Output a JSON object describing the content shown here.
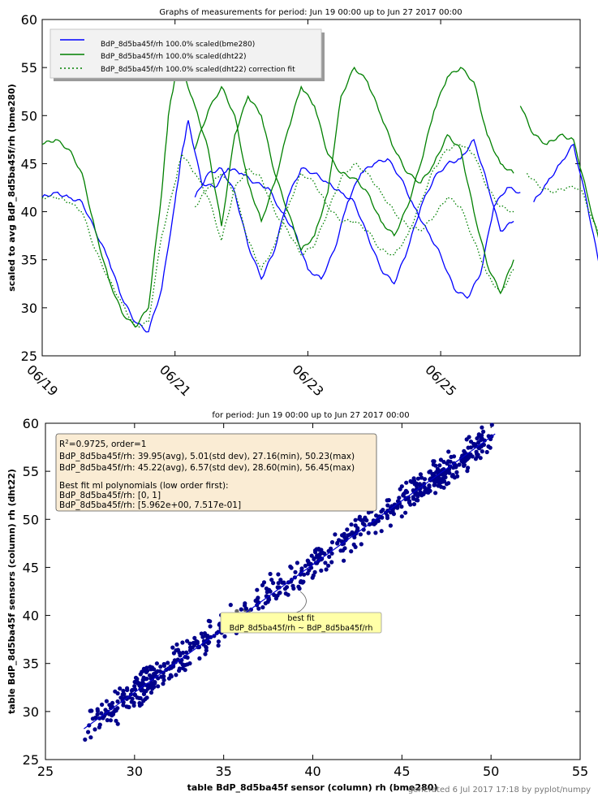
{
  "chart_data": [
    {
      "type": "line",
      "title": "Graphs of measurements for period: Jun 19 00:00 up to Jun 27 2017 00:00",
      "xlabel": "",
      "ylabel": "scaled to avg BdP_8d5ba45f/rh (bme280)",
      "xlim": [
        "2017-06-19 00:00",
        "2017-06-27 00:00"
      ],
      "ylim": [
        25,
        60
      ],
      "yticks": [
        25,
        30,
        35,
        40,
        45,
        50,
        55,
        60
      ],
      "xtick_labels": [
        "06/19",
        "06/21",
        "06/23",
        "06/25"
      ],
      "legend_position": "top-left",
      "series": [
        {
          "name": "BdP_8d5ba45f/rh  100.0% scaled(bme280)",
          "color": "#0000ff",
          "style": "solid",
          "segments": [
            {
              "x": [
                0,
                0.2,
                0.4,
                0.6,
                0.8,
                1.0,
                1.2,
                1.4,
                1.6,
                1.8,
                2.0,
                2.1,
                2.2,
                2.4,
                2.6,
                2.8,
                3.0,
                3.2,
                3.4,
                3.6,
                3.8,
                4.0,
                4.2,
                4.4,
                4.6,
                4.8,
                5.0,
                5.2,
                5.4,
                5.6,
                5.8,
                6.0,
                6.2,
                6.4,
                6.6,
                6.8,
                7.0,
                7.2
              ],
              "y": [
                41.5,
                42.0,
                41.5,
                41.0,
                38.0,
                35.0,
                31.0,
                28.5,
                27.5,
                32.0,
                41.0,
                46.0,
                49.5,
                43.0,
                42.5,
                44.5,
                44.0,
                43.0,
                42.5,
                40.0,
                38.0,
                34.0,
                33.0,
                36.0,
                41.0,
                44.0,
                45.0,
                45.5,
                43.5,
                40.5,
                38.0,
                35.5,
                32.0,
                31.0,
                33.5,
                40.5,
                42.5,
                42.0
              ]
            },
            {
              "x": [
                2.3,
                2.5,
                2.7,
                2.9,
                3.1,
                3.3,
                3.5,
                3.7,
                3.9,
                4.1,
                4.3,
                4.5,
                4.7,
                4.9,
                5.1,
                5.3,
                5.5,
                5.7,
                5.9,
                6.1,
                6.3,
                6.5,
                6.7,
                6.9,
                7.1
              ],
              "y": [
                41.5,
                44.0,
                44.5,
                42.0,
                36.5,
                33.0,
                36.0,
                41.5,
                44.5,
                44.0,
                43.0,
                42.0,
                41.0,
                37.5,
                34.0,
                32.5,
                36.0,
                40.5,
                43.5,
                45.0,
                45.5,
                47.5,
                43.0,
                38.0,
                39.0
              ]
            },
            {
              "x": [
                7.4,
                7.6,
                7.8,
                8.0,
                8.2,
                8.4,
                8.6,
                8.8,
                9.0
              ],
              "y": [
                41.0,
                43.0,
                45.0,
                47.0,
                41.0,
                34.0,
                31.0,
                30.5,
                34.5
              ]
            }
          ]
        },
        {
          "name": "BdP_8d5ba45f/rh  100.0% scaled(dht22)",
          "color": "#008000",
          "style": "solid",
          "segments": [
            {
              "x": [
                0,
                0.2,
                0.4,
                0.6,
                0.8,
                1.0,
                1.2,
                1.4,
                1.6,
                1.8,
                1.9,
                2.0,
                2.1,
                2.3,
                2.5,
                2.7,
                2.9,
                3.1,
                3.3,
                3.5,
                3.7,
                3.9,
                4.1,
                4.3,
                4.5,
                4.7,
                4.9,
                5.1,
                5.3,
                5.5,
                5.7,
                5.9,
                6.1,
                6.3,
                6.5,
                6.7,
                6.9,
                7.1
              ],
              "y": [
                47.0,
                47.5,
                46.5,
                44.0,
                38.0,
                33.0,
                29.5,
                28.0,
                30.0,
                42.0,
                50.0,
                54.0,
                55.0,
                51.0,
                46.5,
                38.5,
                48.0,
                52.0,
                50.0,
                44.0,
                40.0,
                36.0,
                37.5,
                42.0,
                52.0,
                55.0,
                53.5,
                50.0,
                46.5,
                44.0,
                43.0,
                45.0,
                48.0,
                46.5,
                40.0,
                34.5,
                31.5,
                35.0
              ]
            },
            {
              "x": [
                2.3,
                2.5,
                2.7,
                2.9,
                3.1,
                3.3,
                3.5,
                3.7,
                3.9,
                4.1,
                4.3,
                4.5,
                4.7,
                4.9,
                5.1,
                5.3,
                5.5,
                5.7,
                5.9,
                6.1,
                6.3,
                6.5,
                6.7,
                6.9,
                7.1
              ],
              "y": [
                46.5,
                50.5,
                53.0,
                50.0,
                43.0,
                39.0,
                43.0,
                48.5,
                53.0,
                51.0,
                46.0,
                44.0,
                43.5,
                42.0,
                39.0,
                37.5,
                40.5,
                45.0,
                50.5,
                54.0,
                55.0,
                53.5,
                48.0,
                45.0,
                44.0
              ]
            },
            {
              "x": [
                7.2,
                7.4,
                7.6,
                7.8,
                8.0,
                8.2,
                8.4,
                8.6,
                8.8,
                9.0
              ],
              "y": [
                51.0,
                48.0,
                47.0,
                48.0,
                47.5,
                42.0,
                36.5,
                33.0,
                33.5,
                39.0
              ]
            }
          ]
        },
        {
          "name": "BdP_8d5ba45f/rh  100.0% scaled(dht22) correction fit",
          "color": "#008000",
          "style": "dotted",
          "segments": [
            {
              "x": [
                0,
                0.2,
                0.4,
                0.6,
                0.8,
                1.0,
                1.2,
                1.4,
                1.6,
                1.8,
                2.0,
                2.1,
                2.3,
                2.5,
                2.7,
                2.9,
                3.1,
                3.3,
                3.5,
                3.7,
                3.9,
                4.1,
                4.3,
                4.5,
                4.7,
                4.9,
                5.1,
                5.3,
                5.5,
                5.7,
                5.9,
                6.1,
                6.3,
                6.5,
                6.7,
                6.9,
                7.1
              ],
              "y": [
                41.5,
                41.5,
                41.0,
                40.0,
                36.0,
                33.0,
                30.5,
                28.0,
                28.5,
                37.5,
                43.0,
                46.0,
                44.0,
                41.5,
                37.0,
                42.5,
                44.5,
                43.5,
                40.0,
                38.0,
                35.5,
                36.5,
                40.0,
                43.5,
                45.0,
                44.0,
                42.0,
                40.0,
                38.5,
                38.0,
                39.5,
                41.5,
                40.5,
                37.0,
                33.5,
                31.5,
                34.0
              ]
            },
            {
              "x": [
                2.3,
                2.5,
                2.7,
                2.9,
                3.1,
                3.3,
                3.5,
                3.7,
                3.9,
                4.1,
                4.3,
                4.5,
                4.7,
                4.9,
                5.1,
                5.3,
                5.5,
                5.7,
                5.9,
                6.1,
                6.3,
                6.5,
                6.7,
                6.9,
                7.1
              ],
              "y": [
                40.5,
                42.5,
                44.0,
                42.0,
                37.0,
                34.0,
                36.5,
                40.5,
                44.0,
                43.0,
                40.5,
                39.0,
                39.0,
                38.0,
                36.0,
                35.5,
                37.5,
                41.0,
                44.5,
                46.5,
                47.0,
                46.0,
                42.5,
                40.5,
                40.0
              ]
            },
            {
              "x": [
                7.3,
                7.5,
                7.7,
                7.9,
                8.1,
                8.3,
                8.5,
                8.7,
                8.9,
                9.0
              ],
              "y": [
                44.0,
                42.5,
                42.0,
                42.5,
                42.5,
                39.0,
                35.5,
                33.0,
                33.0,
                35.0
              ]
            }
          ]
        }
      ]
    },
    {
      "type": "scatter",
      "title": "for period: Jun 19 00:00 up to Jun 27 2017 00:00",
      "xlabel": "table BdP_8d5ba45f sensor (column) rh (bme280)",
      "ylabel": "table BdP_8d5ba45f sensors (column) rh (dht22)",
      "xlim": [
        25,
        55
      ],
      "ylim": [
        25,
        60
      ],
      "xticks": [
        25,
        30,
        35,
        40,
        45,
        50,
        55
      ],
      "yticks": [
        25,
        30,
        35,
        40,
        45,
        50,
        55,
        60
      ],
      "fit_line": {
        "intercept": 5.962,
        "slope": 0.7517,
        "x_range": [
          27.16,
          50.23
        ]
      },
      "point_count": 700,
      "point_color": "#00008b",
      "info_box": {
        "r2": "=0.9725, order=1",
        "lines": [
          "BdP_8d5ba45f/rh: 39.95(avg),  5.01(std dev), 27.16(min), 50.23(max)",
          "BdP_8d5ba45f/rh: 45.22(avg),  6.57(std dev), 28.60(min), 56.45(max)",
          "",
          "Best fit ml polynomials (low order first):",
          "BdP_8d5ba45f/rh: [0, 1]",
          "BdP_8d5ba45f/rh: [5.962e+00, 7.517e-01]"
        ]
      },
      "annotation": {
        "line1": "best fit",
        "line2": "BdP_8d5ba45f/rh ~ BdP_8d5ba45f/rh",
        "x": 37.0,
        "y": 39.7
      }
    }
  ],
  "footer": "generated 6 Jul 2017 17:18 by pyplot/numpy"
}
